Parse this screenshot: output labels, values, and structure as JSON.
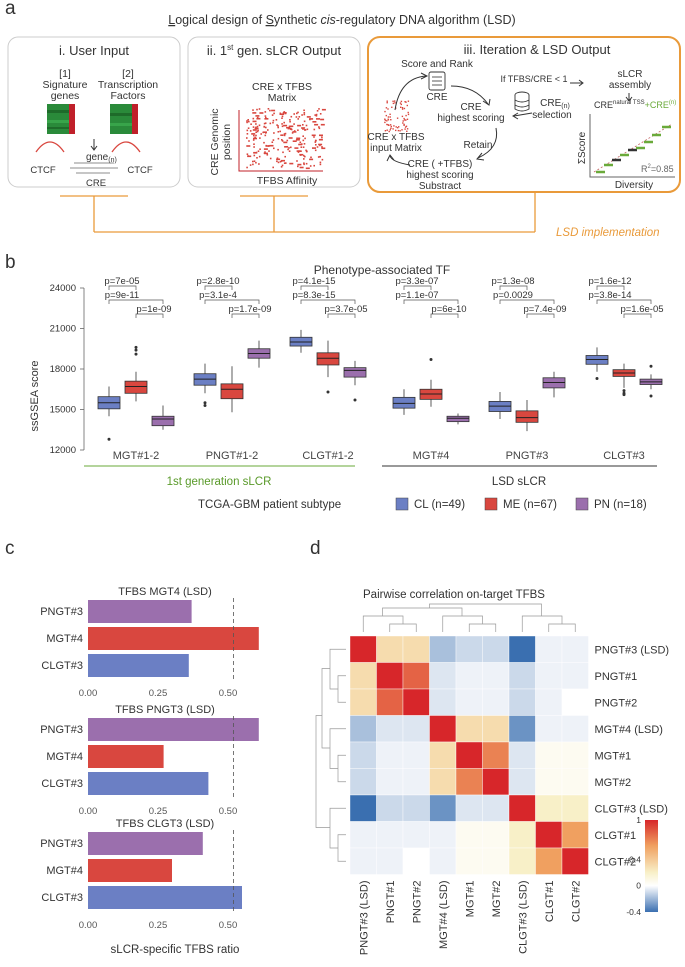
{
  "panel_labels": {
    "a": "a",
    "b": "b",
    "c": "c",
    "d": "d"
  },
  "panel_a": {
    "title_parts": [
      "L",
      "ogical design of ",
      "S",
      "ynthetic ",
      "cis",
      "-regulatory ",
      "DNA algorithm (LSD)"
    ],
    "box1": {
      "title": "i. User Input",
      "sig_num": "[1]",
      "sig_label": "Signature",
      "sig_label2": "genes",
      "tf_num": "[2]",
      "tf_label": "Transcription",
      "tf_label2": "Factors",
      "gene": "gene",
      "gene_sub": "(n)",
      "ctcf_left": "CTCF",
      "ctcf_right": "CTCF",
      "cre": "CRE"
    },
    "box2": {
      "title_pre": "ii. 1",
      "title_sup": "st",
      "title_post": " gen. sLCR Output",
      "matrix_title1": "CRE x TFBS",
      "matrix_title2": "Matrix",
      "y_axis1": "CRE Genomic",
      "y_axis2": "position",
      "x_axis": "TFBS Affinity"
    },
    "box3": {
      "title": "iii. Iteration & LSD Output",
      "score_rank": "Score and Rank",
      "cre_icon": "CRE",
      "if_text": "If TFBS/CRE < 1",
      "cre_sel": "CRE",
      "cre_sel_sub": "(n)",
      "selection": "selection",
      "cre_high1": "CRE",
      "cre_high2": "highest scoring",
      "retain": "Retain",
      "input1": "CRE x TFBS",
      "input2": "input Matrix",
      "subtract1": "CRE ( +TFBS)",
      "subtract2": "highest scoring",
      "subtract3": "Substract",
      "assembly1": "sLCR",
      "assembly2": "assembly",
      "cre_nat": "CRE",
      "cre_nat_sup": "natural TSS",
      "plus": "+",
      "cre_n": "CRE",
      "cre_n_sup": "(n)",
      "y_label": "ΣScore",
      "x_label": "Diversity",
      "r2": "R",
      "r2_sup": "2",
      "r2_val": "=0.85"
    },
    "implementation": "LSD implementation"
  },
  "chart_data": [
    {
      "type": "box",
      "title": "Phenotype-associated TF",
      "ylabel": "ssGSEA score",
      "ylim": [
        12000,
        24000
      ],
      "yticks": [
        12000,
        15000,
        18000,
        21000,
        24000
      ],
      "categories": [
        "MGT#1-2",
        "PNGT#1-2",
        "CLGT#1-2",
        "MGT#4",
        "PNGT#3",
        "CLGT#3"
      ],
      "group_labels": [
        "1st generation sLCR",
        "LSD sLCR"
      ],
      "legend_title": "TCGA-GBM patient subtype",
      "series": [
        {
          "name": "CL (n=49)",
          "color": "#6b7fc4",
          "stats": [
            [
              14500,
              15050,
              15500,
              15950,
              16700
            ],
            [
              16200,
              16800,
              17250,
              17650,
              18400
            ],
            [
              19200,
              19700,
              20000,
              20350,
              20900
            ],
            [
              14600,
              15100,
              15450,
              15900,
              16500
            ],
            [
              14300,
              14850,
              15250,
              15600,
              16300
            ],
            [
              17800,
              18350,
              18700,
              19000,
              19600
            ]
          ],
          "outliers": [
            [
              12800
            ],
            [
              15500,
              15300
            ],
            [],
            [],
            [],
            [
              17300
            ]
          ]
        },
        {
          "name": "ME (n=67)",
          "color": "#d9473f",
          "stats": [
            [
              15600,
              16200,
              16700,
              17100,
              17800
            ],
            [
              14800,
              15800,
              16500,
              16900,
              18200
            ],
            [
              17400,
              18300,
              18800,
              19200,
              20100
            ],
            [
              15200,
              15750,
              16150,
              16500,
              17200
            ],
            [
              13400,
              14050,
              14400,
              14900,
              15700
            ],
            [
              16600,
              17450,
              17700,
              17950,
              18400
            ]
          ],
          "outliers": [
            [
              19100,
              19400,
              19600
            ],
            [],
            [
              16300
            ],
            [
              18700
            ],
            [],
            [
              16400,
              16200,
              16100
            ]
          ],
          "outlier_note": ""
        },
        {
          "name": "PN (n=18)",
          "color": "#9b6fad",
          "stats": [
            [
              13500,
              13800,
              14300,
              14500,
              15300
            ],
            [
              18100,
              18800,
              19150,
              19500,
              20100
            ],
            [
              16800,
              17400,
              17900,
              18100,
              18600
            ],
            [
              13900,
              14100,
              14350,
              14500,
              14700
            ],
            [
              15900,
              16600,
              17000,
              17350,
              17800
            ],
            [
              16500,
              16850,
              17050,
              17250,
              17600
            ]
          ],
          "outliers": [
            [],
            [],
            [
              15700
            ],
            [],
            [],
            [
              16000,
              18200
            ]
          ]
        }
      ],
      "pvalues": [
        [
          "p=7e-05",
          "p=9e-11",
          "p=1e-09"
        ],
        [
          "p=2.8e-10",
          "p=3.1e-4",
          "p=1.7e-09"
        ],
        [
          "p=4.1e-15",
          "p=8.3e-15",
          "p=3.7e-05"
        ],
        [
          "p=3.3e-07",
          "p=1.1e-07",
          "p=6e-10"
        ],
        [
          "p=1.3e-08",
          "p=0.0029",
          "p=7.4e-09"
        ],
        [
          "p=1.6e-12",
          "p=3.8e-14",
          "p=1.6e-05"
        ]
      ]
    },
    {
      "type": "bar",
      "orientation": "horizontal",
      "xlabel": "sLCR-specific TFBS ratio",
      "xlim": [
        0,
        0.7
      ],
      "xticks": [
        "0.00",
        "0.25",
        "0.50"
      ],
      "threshold": 0.52,
      "panels": [
        {
          "title": "TFBS MGT4 (LSD)",
          "categories": [
            "PNGT#3",
            "MGT#4",
            "CLGT#3"
          ],
          "values": [
            0.37,
            0.61,
            0.36
          ],
          "colors": [
            "#9b6fad",
            "#d9473f",
            "#6b7fc4"
          ]
        },
        {
          "title": "TFBS PNGT3 (LSD)",
          "categories": [
            "PNGT#3",
            "MGT#4",
            "CLGT#3"
          ],
          "values": [
            0.61,
            0.27,
            0.43
          ],
          "colors": [
            "#9b6fad",
            "#d9473f",
            "#6b7fc4"
          ]
        },
        {
          "title": "TFBS  CLGT3 (LSD)",
          "categories": [
            "PNGT#3",
            "MGT#4",
            "CLGT#3"
          ],
          "values": [
            0.41,
            0.3,
            0.55
          ],
          "colors": [
            "#9b6fad",
            "#d9473f",
            "#6b7fc4"
          ]
        }
      ]
    },
    {
      "type": "heatmap",
      "title": "Pairwise correlation on-target TFBS",
      "labels": [
        "PNGT#3 (LSD)",
        "PNGT#1",
        "PNGT#2",
        "MGT#4 (LSD)",
        "MGT#1",
        "MGT#2",
        "CLGT#3 (LSD)",
        "CLGT#1",
        "CLGT#2"
      ],
      "colorbar_ticks": [
        "1",
        "0.4",
        "0",
        "-0.4"
      ],
      "vmin": -0.4,
      "vmax": 1,
      "matrix": [
        [
          1.0,
          0.3,
          0.3,
          -0.25,
          -0.15,
          -0.15,
          -0.4,
          -0.05,
          -0.05
        ],
        [
          0.3,
          1.0,
          0.8,
          -0.1,
          -0.05,
          -0.05,
          -0.15,
          -0.05,
          -0.05
        ],
        [
          0.3,
          0.8,
          1.0,
          -0.1,
          -0.05,
          -0.05,
          -0.15,
          -0.05,
          0.0
        ],
        [
          -0.25,
          -0.1,
          -0.1,
          1.0,
          0.3,
          0.3,
          -0.3,
          -0.05,
          -0.05
        ],
        [
          -0.15,
          -0.05,
          -0.05,
          0.3,
          1.0,
          0.7,
          -0.1,
          0.05,
          0.05
        ],
        [
          -0.15,
          -0.05,
          -0.05,
          0.3,
          0.7,
          1.0,
          -0.1,
          0.05,
          0.05
        ],
        [
          -0.4,
          -0.15,
          -0.15,
          -0.3,
          -0.1,
          -0.1,
          1.0,
          0.2,
          0.2
        ],
        [
          -0.05,
          -0.05,
          -0.05,
          -0.05,
          0.05,
          0.05,
          0.2,
          1.0,
          0.6
        ],
        [
          -0.05,
          -0.05,
          0.0,
          -0.05,
          0.05,
          0.05,
          0.2,
          0.6,
          1.0
        ]
      ]
    }
  ]
}
